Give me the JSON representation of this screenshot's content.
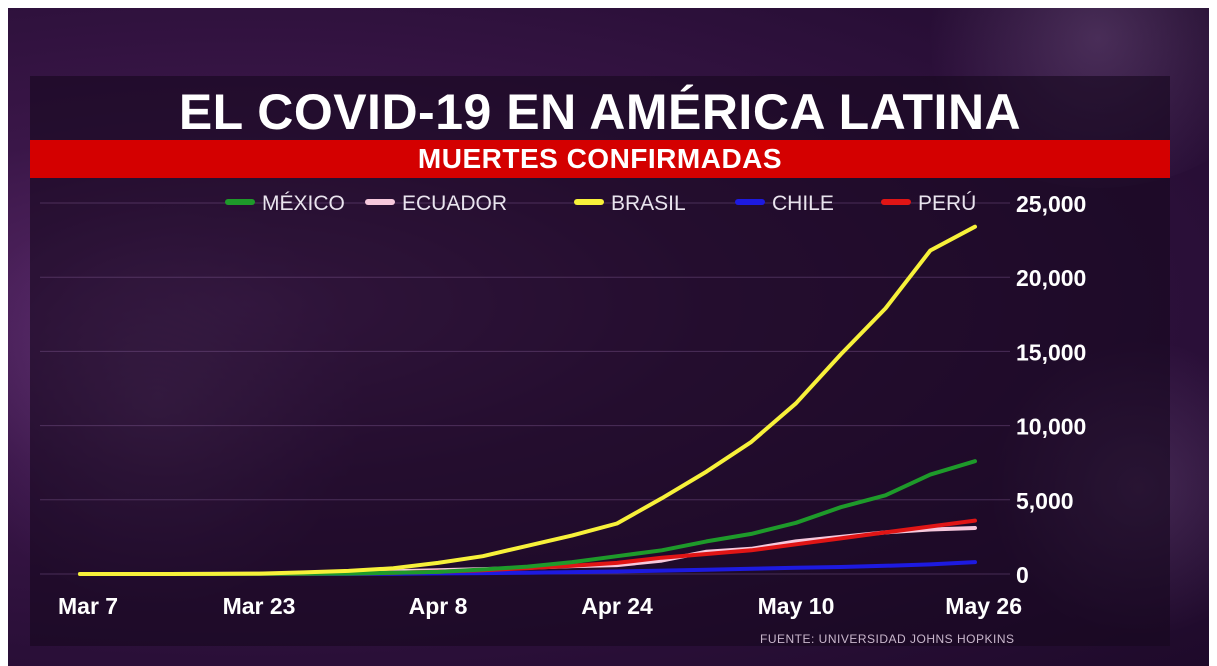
{
  "header": {
    "title": "EL COVID-19 EN AMÉRICA LATINA",
    "subtitle": "MUERTES CONFIRMADAS"
  },
  "source": "FUENTE: UNIVERSIDAD JOHNS HOPKINS",
  "colors": {
    "background": "#2a0f38",
    "banner": "#d40000",
    "mexico": "#1e9a2a",
    "ecuador": "#f6c8dc",
    "brasil": "#f7f13a",
    "chile": "#1d1ae0",
    "peru": "#e01515"
  },
  "chart_data": {
    "type": "line",
    "title": "MUERTES CONFIRMADAS",
    "xlabel": "",
    "ylabel": "",
    "x_ticks": [
      "Mar 7",
      "Mar 23",
      "Apr 8",
      "Apr 24",
      "May 10",
      "May 26"
    ],
    "y_ticks": [
      "0",
      "5,000",
      "10,000",
      "15,000",
      "20,000",
      "25,000"
    ],
    "ylim": [
      0,
      25000
    ],
    "grid": true,
    "legend_position": "top",
    "x": [
      "Mar 7",
      "Mar 11",
      "Mar 15",
      "Mar 19",
      "Mar 23",
      "Mar 27",
      "Mar 31",
      "Apr 4",
      "Apr 8",
      "Apr 12",
      "Apr 16",
      "Apr 20",
      "Apr 24",
      "Apr 28",
      "May 2",
      "May 6",
      "May 10",
      "May 14",
      "May 18",
      "May 22",
      "May 26"
    ],
    "series": [
      {
        "name": "MÉXICO",
        "color": "#1e9a2a",
        "values": [
          0,
          0,
          0,
          2,
          5,
          15,
          30,
          80,
          140,
          300,
          500,
          800,
          1200,
          1600,
          2200,
          2700,
          3450,
          4500,
          5300,
          6700,
          7600
        ]
      },
      {
        "name": "ECUADOR",
        "color": "#f6c8dc",
        "values": [
          0,
          0,
          2,
          5,
          20,
          60,
          120,
          190,
          250,
          330,
          420,
          530,
          600,
          900,
          1500,
          1700,
          2200,
          2500,
          2800,
          3000,
          3100
        ]
      },
      {
        "name": "BRASIL",
        "color": "#f7f13a",
        "values": [
          0,
          0,
          0,
          5,
          30,
          110,
          210,
          390,
          750,
          1200,
          1900,
          2600,
          3400,
          5100,
          6900,
          8900,
          11500,
          14800,
          17900,
          21800,
          23400
        ]
      },
      {
        "name": "CHILE",
        "color": "#1d1ae0",
        "values": [
          0,
          0,
          0,
          0,
          1,
          3,
          10,
          20,
          40,
          60,
          90,
          130,
          170,
          230,
          280,
          350,
          420,
          470,
          550,
          650,
          800
        ]
      },
      {
        "name": "PERÚ",
        "color": "#e01515",
        "values": [
          0,
          0,
          0,
          3,
          8,
          20,
          40,
          80,
          150,
          250,
          400,
          550,
          750,
          1100,
          1350,
          1600,
          2000,
          2400,
          2800,
          3200,
          3600
        ]
      }
    ]
  }
}
